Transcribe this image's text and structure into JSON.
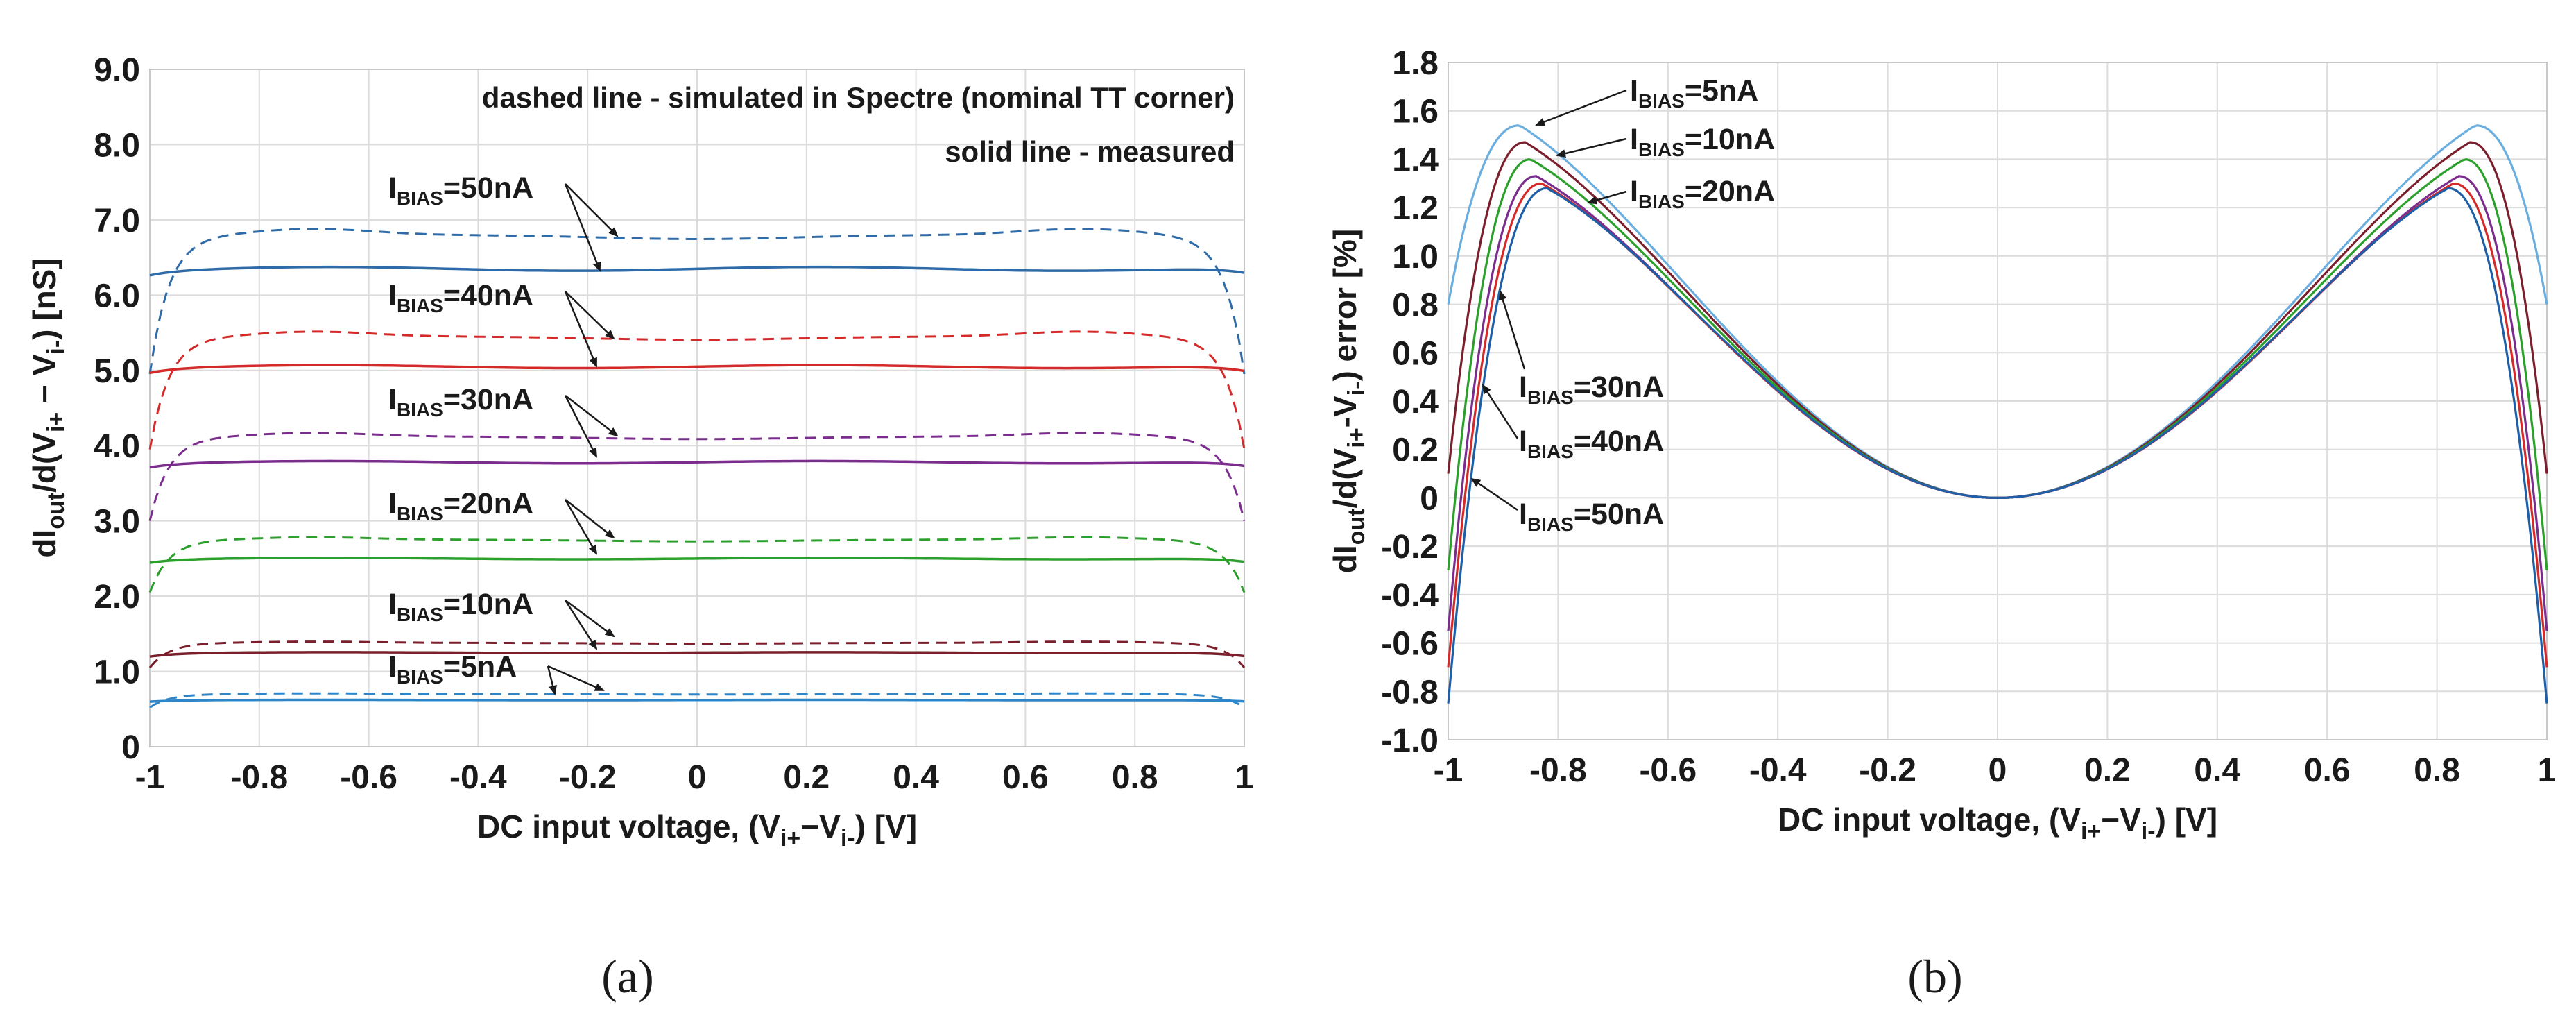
{
  "colors": {
    "5nA": "#2e86c8",
    "10nA": "#7a1f2b",
    "20nA": "#2ca02c",
    "30nA": "#7b2d8e",
    "40nA": "#d42a2a",
    "50nA": "#2e6ba8",
    "5nA_b": "#6aaee0",
    "50nA_b": "#1f5fa8"
  },
  "chart_data": [
    {
      "id": "a",
      "type": "line",
      "caption": "(a)",
      "title": "",
      "xlabel": {
        "main": "DC input voltage, (V",
        "s1": "i+",
        "mid": "−V",
        "s2": "i-",
        "tail": ") [V]"
      },
      "ylabel": {
        "main": "dI",
        "s1": "out",
        "mid": "/d(V",
        "s2": "i+",
        "mid2": " − V",
        "s3": "i-",
        "tail": ") [nS]"
      },
      "xlim": [
        -1,
        1
      ],
      "ylim": [
        0,
        9
      ],
      "xticks": [
        "-1",
        "-0.8",
        "-0.6",
        "-0.4",
        "-0.2",
        "0",
        "0.2",
        "0.4",
        "0.6",
        "0.8",
        "1"
      ],
      "yticks": [
        "0",
        "1.0",
        "2.0",
        "3.0",
        "4.0",
        "5.0",
        "6.0",
        "7.0",
        "8.0",
        "9.0"
      ],
      "notes": [
        "dashed line - simulated in Spectre (nominal TT corner)",
        "solid line - measured"
      ],
      "series": [
        {
          "name": "IBIAS=50nA",
          "color_key": "50nA",
          "measured": 6.35,
          "measured_edge": 6.28,
          "simulated": 6.8,
          "sim_edge": 4.95
        },
        {
          "name": "IBIAS=40nA",
          "color_key": "40nA",
          "measured": 5.05,
          "measured_edge": 4.98,
          "simulated": 5.45,
          "sim_edge": 3.95
        },
        {
          "name": "IBIAS=30nA",
          "color_key": "30nA",
          "measured": 3.78,
          "measured_edge": 3.72,
          "simulated": 4.12,
          "sim_edge": 3.0
        },
        {
          "name": "IBIAS=20nA",
          "color_key": "20nA",
          "measured": 2.5,
          "measured_edge": 2.45,
          "simulated": 2.75,
          "sim_edge": 2.05
        },
        {
          "name": "IBIAS=10nA",
          "color_key": "10nA",
          "measured": 1.25,
          "measured_edge": 1.2,
          "simulated": 1.38,
          "sim_edge": 1.05
        },
        {
          "name": "IBIAS=5nA",
          "color_key": "5nA",
          "measured": 0.62,
          "measured_edge": 0.6,
          "simulated": 0.7,
          "sim_edge": 0.52
        }
      ],
      "annotations": [
        {
          "label": {
            "base": "I",
            "sub": "BIAS",
            "rest": "=50nA"
          }
        },
        {
          "label": {
            "base": "I",
            "sub": "BIAS",
            "rest": "=40nA"
          }
        },
        {
          "label": {
            "base": "I",
            "sub": "BIAS",
            "rest": "=30nA"
          }
        },
        {
          "label": {
            "base": "I",
            "sub": "BIAS",
            "rest": "=20nA"
          }
        },
        {
          "label": {
            "base": "I",
            "sub": "BIAS",
            "rest": "=10nA"
          }
        },
        {
          "label": {
            "base": "I",
            "sub": "BIAS",
            "rest": "=5nA"
          }
        }
      ]
    },
    {
      "id": "b",
      "type": "line",
      "caption": "(b)",
      "title": "",
      "xlabel": {
        "main": "DC input voltage, (V",
        "s1": "i+",
        "mid": "−V",
        "s2": "i-",
        "tail": ") [V]"
      },
      "ylabel": {
        "main": "dI",
        "s1": "out",
        "mid": "/d(V",
        "s2": "i+",
        "mid2": "-V",
        "s3": "i-",
        "tail": ") error  [%]"
      },
      "xlim": [
        -1,
        1
      ],
      "ylim": [
        -1.0,
        1.8
      ],
      "xticks": [
        "-1",
        "-0.8",
        "-0.6",
        "-0.4",
        "-0.2",
        "0",
        "0.2",
        "0.4",
        "0.6",
        "0.8",
        "1"
      ],
      "yticks": [
        "-1.0",
        "-0.8",
        "-0.6",
        "-0.4",
        "-0.2",
        "0",
        "0.2",
        "0.4",
        "0.6",
        "0.8",
        "1.0",
        "1.2",
        "1.4",
        "1.6",
        "1.8"
      ],
      "series": [
        {
          "name": "IBIAS=5nA",
          "color_key": "5nA_b",
          "peak": 1.54,
          "peak_x": 0.87,
          "edge": 0.8
        },
        {
          "name": "IBIAS=10nA",
          "color_key": "10nA",
          "peak": 1.47,
          "peak_x": 0.86,
          "edge": 0.1
        },
        {
          "name": "IBIAS=20nA",
          "color_key": "20nA",
          "peak": 1.4,
          "peak_x": 0.85,
          "edge": -0.3
        },
        {
          "name": "IBIAS=30nA",
          "color_key": "30nA",
          "peak": 1.33,
          "peak_x": 0.84,
          "edge": -0.55
        },
        {
          "name": "IBIAS=40nA",
          "color_key": "40nA",
          "peak": 1.3,
          "peak_x": 0.83,
          "edge": -0.7
        },
        {
          "name": "IBIAS=50nA",
          "color_key": "50nA_b",
          "peak": 1.28,
          "peak_x": 0.82,
          "edge": -0.85
        }
      ],
      "annotations": [
        {
          "label": {
            "base": "I",
            "sub": "BIAS",
            "rest": "=5nA"
          }
        },
        {
          "label": {
            "base": "I",
            "sub": "BIAS",
            "rest": "=10nA"
          }
        },
        {
          "label": {
            "base": "I",
            "sub": "BIAS",
            "rest": "=20nA"
          }
        },
        {
          "label": {
            "base": "I",
            "sub": "BIAS",
            "rest": "=30nA"
          }
        },
        {
          "label": {
            "base": "I",
            "sub": "BIAS",
            "rest": "=40nA"
          }
        },
        {
          "label": {
            "base": "I",
            "sub": "BIAS",
            "rest": "=50nA"
          }
        }
      ]
    }
  ]
}
